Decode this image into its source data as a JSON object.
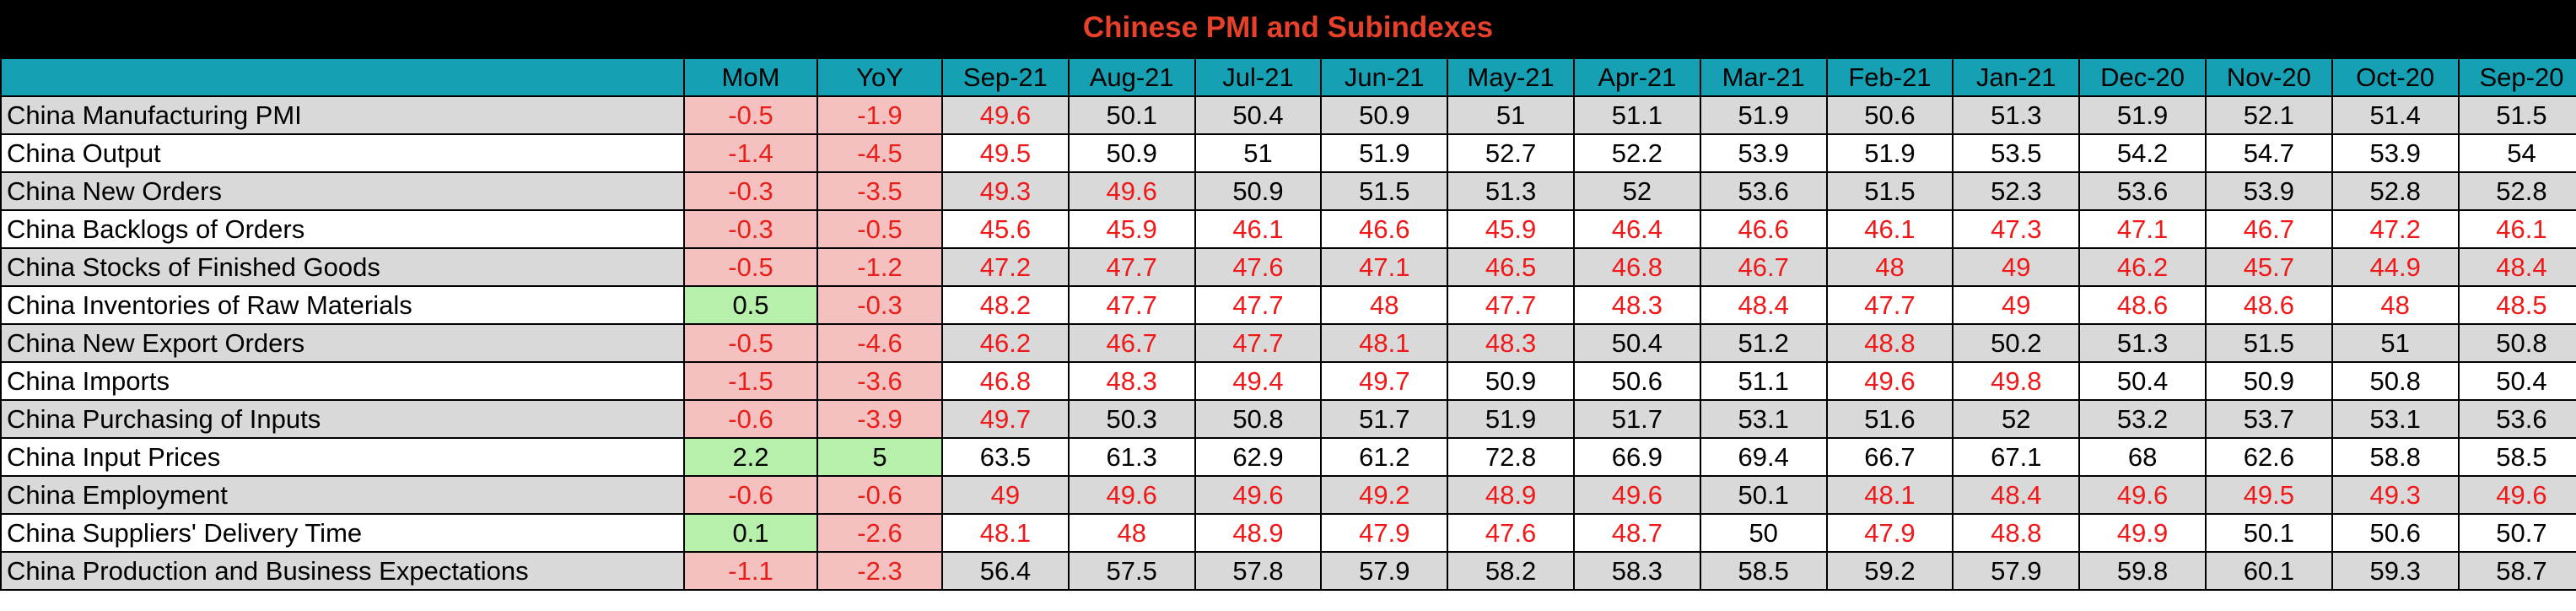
{
  "title": "Chinese PMI and Subindexes",
  "chart_data": {
    "type": "table",
    "title": "Chinese PMI and Subindexes",
    "columns": [
      "",
      "MoM",
      "YoY",
      "Sep-21",
      "Aug-21",
      "Jul-21",
      "Jun-21",
      "May-21",
      "Apr-21",
      "Mar-21",
      "Feb-21",
      "Jan-21",
      "Dec-20",
      "Nov-20",
      "Oct-20",
      "Sep-20"
    ],
    "rows": [
      {
        "label": "China Manufacturing PMI",
        "mom": "-0.5",
        "yoy": "-1.9",
        "values": [
          "49.6",
          "50.1",
          "50.4",
          "50.9",
          "51",
          "51.1",
          "51.9",
          "50.6",
          "51.3",
          "51.9",
          "52.1",
          "51.4",
          "51.5"
        ]
      },
      {
        "label": "China Output",
        "mom": "-1.4",
        "yoy": "-4.5",
        "values": [
          "49.5",
          "50.9",
          "51",
          "51.9",
          "52.7",
          "52.2",
          "53.9",
          "51.9",
          "53.5",
          "54.2",
          "54.7",
          "53.9",
          "54"
        ]
      },
      {
        "label": "China New Orders",
        "mom": "-0.3",
        "yoy": "-3.5",
        "values": [
          "49.3",
          "49.6",
          "50.9",
          "51.5",
          "51.3",
          "52",
          "53.6",
          "51.5",
          "52.3",
          "53.6",
          "53.9",
          "52.8",
          "52.8"
        ]
      },
      {
        "label": "China Backlogs of Orders",
        "mom": "-0.3",
        "yoy": "-0.5",
        "values": [
          "45.6",
          "45.9",
          "46.1",
          "46.6",
          "45.9",
          "46.4",
          "46.6",
          "46.1",
          "47.3",
          "47.1",
          "46.7",
          "47.2",
          "46.1"
        ]
      },
      {
        "label": "China Stocks of Finished Goods",
        "mom": "-0.5",
        "yoy": "-1.2",
        "values": [
          "47.2",
          "47.7",
          "47.6",
          "47.1",
          "46.5",
          "46.8",
          "46.7",
          "48",
          "49",
          "46.2",
          "45.7",
          "44.9",
          "48.4"
        ]
      },
      {
        "label": "China Inventories of Raw Materials",
        "mom": "0.5",
        "yoy": "-0.3",
        "values": [
          "48.2",
          "47.7",
          "47.7",
          "48",
          "47.7",
          "48.3",
          "48.4",
          "47.7",
          "49",
          "48.6",
          "48.6",
          "48",
          "48.5"
        ]
      },
      {
        "label": "China New Export Orders",
        "mom": "-0.5",
        "yoy": "-4.6",
        "values": [
          "46.2",
          "46.7",
          "47.7",
          "48.1",
          "48.3",
          "50.4",
          "51.2",
          "48.8",
          "50.2",
          "51.3",
          "51.5",
          "51",
          "50.8"
        ]
      },
      {
        "label": "China Imports",
        "mom": "-1.5",
        "yoy": "-3.6",
        "values": [
          "46.8",
          "48.3",
          "49.4",
          "49.7",
          "50.9",
          "50.6",
          "51.1",
          "49.6",
          "49.8",
          "50.4",
          "50.9",
          "50.8",
          "50.4"
        ]
      },
      {
        "label": "China Purchasing of Inputs",
        "mom": "-0.6",
        "yoy": "-3.9",
        "values": [
          "49.7",
          "50.3",
          "50.8",
          "51.7",
          "51.9",
          "51.7",
          "53.1",
          "51.6",
          "52",
          "53.2",
          "53.7",
          "53.1",
          "53.6"
        ]
      },
      {
        "label": "China Input Prices",
        "mom": "2.2",
        "yoy": "5",
        "values": [
          "63.5",
          "61.3",
          "62.9",
          "61.2",
          "72.8",
          "66.9",
          "69.4",
          "66.7",
          "67.1",
          "68",
          "62.6",
          "58.8",
          "58.5"
        ]
      },
      {
        "label": "China Employment",
        "mom": "-0.6",
        "yoy": "-0.6",
        "values": [
          "49",
          "49.6",
          "49.6",
          "49.2",
          "48.9",
          "49.6",
          "50.1",
          "48.1",
          "48.4",
          "49.6",
          "49.5",
          "49.3",
          "49.6"
        ]
      },
      {
        "label": "China Suppliers' Delivery Time",
        "mom": "0.1",
        "yoy": "-2.6",
        "values": [
          "48.1",
          "48",
          "48.9",
          "47.9",
          "47.6",
          "48.7",
          "50",
          "47.9",
          "48.8",
          "49.9",
          "50.1",
          "50.6",
          "50.7"
        ]
      },
      {
        "label": "China Production and Business Expectations",
        "mom": "-1.1",
        "yoy": "-2.3",
        "values": [
          "56.4",
          "57.5",
          "57.8",
          "57.9",
          "58.2",
          "58.3",
          "58.5",
          "59.2",
          "57.9",
          "59.8",
          "60.1",
          "59.3",
          "58.7"
        ]
      }
    ]
  },
  "colors": {
    "title_text": "#e8412b",
    "header_bg": "#16a0b4",
    "row_shade": "#d9d9d9",
    "negative_bg": "#f4c0c0",
    "positive_bg": "#b7f0ab",
    "below_50_text": "#f01818"
  }
}
